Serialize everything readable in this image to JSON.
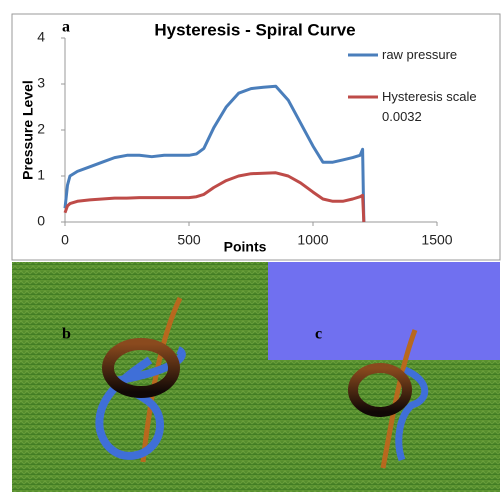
{
  "chart_data": {
    "type": "line",
    "title": "Hysteresis - Spiral Curve",
    "x_label": "Points",
    "y_label": "Pressure Level",
    "x": [
      0,
      10,
      20,
      50,
      100,
      150,
      200,
      250,
      300,
      350,
      400,
      450,
      500,
      530,
      560,
      600,
      650,
      700,
      750,
      800,
      850,
      900,
      950,
      1000,
      1040,
      1080,
      1120,
      1160,
      1190,
      1200,
      1205
    ],
    "series": [
      {
        "name": "raw pressure",
        "color": "#4a7ebb",
        "values": [
          0.3,
          0.8,
          1.0,
          1.1,
          1.2,
          1.3,
          1.4,
          1.45,
          1.45,
          1.42,
          1.45,
          1.45,
          1.45,
          1.48,
          1.6,
          2.05,
          2.5,
          2.8,
          2.9,
          2.93,
          2.95,
          2.65,
          2.15,
          1.65,
          1.3,
          1.3,
          1.35,
          1.4,
          1.45,
          1.58,
          0.0
        ]
      },
      {
        "name": "Hysteresis scale 0.0032",
        "color": "#be4b48",
        "values": [
          0.2,
          0.35,
          0.4,
          0.45,
          0.48,
          0.5,
          0.52,
          0.52,
          0.53,
          0.53,
          0.53,
          0.53,
          0.53,
          0.55,
          0.6,
          0.75,
          0.9,
          1.0,
          1.05,
          1.06,
          1.07,
          1.0,
          0.85,
          0.65,
          0.5,
          0.45,
          0.45,
          0.5,
          0.55,
          0.58,
          0.0
        ]
      }
    ],
    "xlim": [
      0,
      1500
    ],
    "xticks": [
      0,
      500,
      1000,
      1500
    ],
    "ylim": [
      0,
      4
    ],
    "yticks": [
      0,
      1,
      2,
      3,
      4
    ],
    "grid": false,
    "legend": "right"
  },
  "panel_labels": [
    "a",
    "b",
    "c"
  ]
}
